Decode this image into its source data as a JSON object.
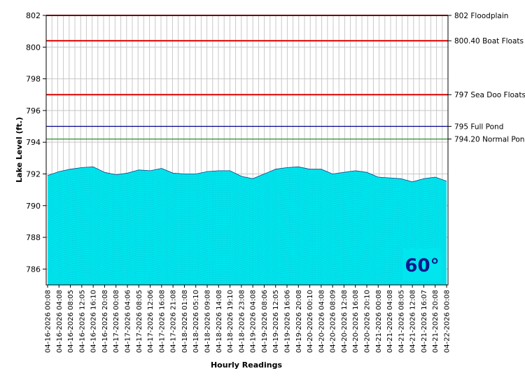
{
  "chart_data": {
    "type": "area",
    "xlabel": "Hourly Readings",
    "ylabel": "Lake Level (ft.)",
    "ylim": [
      785,
      802
    ],
    "yticks": [
      786,
      788,
      790,
      792,
      794,
      796,
      798,
      800,
      802
    ],
    "grid": true,
    "fill_color": "#00e5ee",
    "categories": [
      "04-16-2026 00:08",
      "04-16-2026 04:08",
      "04-16-2026 08:05",
      "04-16-2026 12:05",
      "04-16-2026 16:10",
      "04-16-2026 20:08",
      "04-17-2026 00:08",
      "04-17-2026 04:06",
      "04-17-2026 08:05",
      "04-17-2026 12:06",
      "04-17-2026 16:08",
      "04-17-2026 21:08",
      "04-18-2026 01:08",
      "04-18-2026 05:10",
      "04-18-2026 09:08",
      "04-18-2026 14:08",
      "04-18-2026 19:10",
      "04-18-2026 23:08",
      "04-19-2026 04:08",
      "04-19-2026 08:06",
      "04-19-2026 12:05",
      "04-19-2026 16:06",
      "04-19-2026 20:08",
      "04-20-2026 00:10",
      "04-20-2026 04:08",
      "04-20-2026 08:09",
      "04-20-2026 12:08",
      "04-20-2026 16:08",
      "04-20-2026 20:10",
      "04-21-2026 00:08",
      "04-21-2026 04:08",
      "04-21-2026 08:05",
      "04-21-2026 12:08",
      "04-21-2026 16:07",
      "04-21-2026 20:08",
      "04-22-2026 00:08"
    ],
    "values": [
      791.9,
      792.15,
      792.3,
      792.4,
      792.45,
      792.1,
      791.95,
      792.05,
      792.25,
      792.2,
      792.35,
      792.05,
      792.0,
      792.0,
      792.15,
      792.2,
      792.2,
      791.85,
      791.7,
      792.0,
      792.3,
      792.4,
      792.45,
      792.3,
      792.3,
      792.0,
      792.1,
      792.2,
      792.1,
      791.8,
      791.75,
      791.7,
      791.5,
      791.7,
      791.8,
      791.55
    ],
    "reference_lines": [
      {
        "value": 802,
        "label": "802 Floodplain",
        "color": "#dd0000"
      },
      {
        "value": 800.4,
        "label": "800.40 Boat Floats",
        "color": "#dd0000"
      },
      {
        "value": 797,
        "label": "797 Sea Doo Floats",
        "color": "#dd0000"
      },
      {
        "value": 795,
        "label": "795 Full Pond",
        "color": "#00008b"
      },
      {
        "value": 794.2,
        "label": "794.20 Normal Pond",
        "color": "#2e8b2e"
      }
    ],
    "annotation": {
      "temperature": "60°",
      "background": "#00e5ee",
      "text_color": "#0a1a8c"
    }
  }
}
